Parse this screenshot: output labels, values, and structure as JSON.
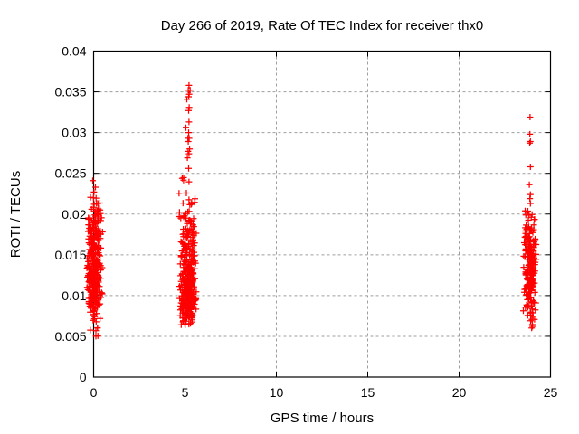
{
  "title": "Day 266 of 2019, Rate Of TEC Index for receiver thx0",
  "chart_data": {
    "type": "scatter",
    "title": "Day 266 of 2019, Rate Of TEC Index for receiver thx0",
    "xlabel": "GPS time / hours",
    "ylabel": "ROTI / TECUs",
    "xlim": [
      0,
      25
    ],
    "ylim": [
      0,
      0.04
    ],
    "xticks": [
      0,
      5,
      10,
      15,
      20,
      25
    ],
    "xtick_labels": [
      "0",
      "5",
      "10",
      "15",
      "20",
      "25"
    ],
    "yticks": [
      0,
      0.005,
      0.01,
      0.015,
      0.02,
      0.025,
      0.03,
      0.035,
      0.04
    ],
    "ytick_labels": [
      "0",
      "0.005",
      "0.01",
      "0.015",
      "0.02",
      "0.025",
      "0.03",
      "0.035",
      "0.04"
    ],
    "grid": true,
    "grid_x": [
      5,
      10,
      15,
      20
    ],
    "grid_y": [
      0.005,
      0.01,
      0.015,
      0.02,
      0.025,
      0.03,
      0.035
    ],
    "legend": "none",
    "marker": {
      "shape": "plus",
      "color": "#ff0000",
      "size": 7
    },
    "clusters": [
      {
        "name": "pass-at-0h",
        "x": 0.06,
        "x_jitter": 0.45,
        "seed": 11,
        "y_range": [
          0.0047,
          0.0241
        ],
        "segments": [
          [
            0.0047,
            0.0053,
            2
          ],
          [
            0.0056,
            0.0066,
            4
          ],
          [
            0.0066,
            0.008,
            9
          ],
          [
            0.008,
            0.0095,
            28
          ],
          [
            0.0095,
            0.011,
            42
          ],
          [
            0.011,
            0.013,
            55
          ],
          [
            0.013,
            0.015,
            48
          ],
          [
            0.015,
            0.0165,
            40
          ],
          [
            0.0165,
            0.018,
            32
          ],
          [
            0.018,
            0.0195,
            26
          ],
          [
            0.0195,
            0.0205,
            14
          ],
          [
            0.0205,
            0.0215,
            7
          ],
          [
            0.0216,
            0.0222,
            3
          ]
        ]
      },
      {
        "name": "pass-at-5h",
        "x": 5.17,
        "x_jitter": 0.5,
        "seed": 22,
        "y_range": [
          0.0064,
          0.0358
        ],
        "segments": [
          [
            0.0064,
            0.0072,
            10
          ],
          [
            0.0072,
            0.008,
            30
          ],
          [
            0.008,
            0.0092,
            55
          ],
          [
            0.0092,
            0.0105,
            52
          ],
          [
            0.0105,
            0.012,
            46
          ],
          [
            0.012,
            0.0135,
            40
          ],
          [
            0.0135,
            0.015,
            34
          ],
          [
            0.015,
            0.0165,
            28
          ],
          [
            0.0165,
            0.018,
            22
          ],
          [
            0.018,
            0.0195,
            14
          ],
          [
            0.0195,
            0.0205,
            8
          ],
          [
            0.0211,
            0.0233,
            9
          ],
          [
            0.0239,
            0.025,
            4
          ]
        ]
      },
      {
        "name": "pass-at-24h",
        "x": 23.87,
        "x_jitter": 0.38,
        "seed": 33,
        "y_range": [
          0.006,
          0.0319
        ],
        "segments": [
          [
            0.006,
            0.0068,
            3
          ],
          [
            0.0068,
            0.008,
            9
          ],
          [
            0.008,
            0.0095,
            18
          ],
          [
            0.0095,
            0.011,
            26
          ],
          [
            0.011,
            0.0125,
            32
          ],
          [
            0.0125,
            0.014,
            36
          ],
          [
            0.014,
            0.0155,
            34
          ],
          [
            0.0155,
            0.017,
            28
          ],
          [
            0.017,
            0.0185,
            20
          ],
          [
            0.0185,
            0.0204,
            12
          ]
        ]
      }
    ],
    "outlier_points": [
      [
        0.02,
        0.0227
      ],
      [
        0.1,
        0.0233
      ],
      [
        -0.05,
        0.0241
      ],
      [
        5.2,
        0.0256
      ],
      [
        5.13,
        0.0269
      ],
      [
        5.22,
        0.0274
      ],
      [
        5.17,
        0.0277
      ],
      [
        5.25,
        0.028
      ],
      [
        5.18,
        0.0289
      ],
      [
        5.23,
        0.0293
      ],
      [
        5.16,
        0.0293
      ],
      [
        5.2,
        0.03
      ],
      [
        5.05,
        0.0306
      ],
      [
        5.22,
        0.0313
      ],
      [
        5.2,
        0.0327
      ],
      [
        5.23,
        0.0331
      ],
      [
        5.1,
        0.0341
      ],
      [
        5.2,
        0.0344
      ],
      [
        5.23,
        0.0347
      ],
      [
        5.18,
        0.0352
      ],
      [
        5.28,
        0.0352
      ],
      [
        5.22,
        0.0358
      ],
      [
        23.9,
        0.0213
      ],
      [
        23.87,
        0.0219
      ],
      [
        23.9,
        0.0224
      ],
      [
        23.84,
        0.0236
      ],
      [
        23.9,
        0.0258
      ],
      [
        23.86,
        0.0287
      ],
      [
        23.9,
        0.0289
      ],
      [
        23.87,
        0.0298
      ],
      [
        23.88,
        0.0319
      ]
    ]
  }
}
